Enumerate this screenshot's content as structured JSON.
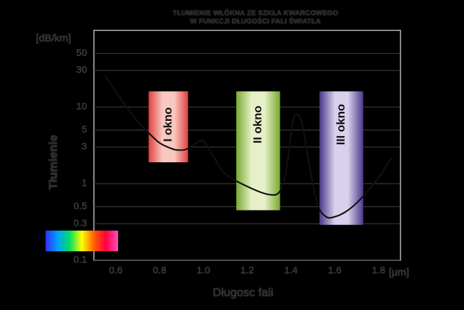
{
  "chart_data": {
    "type": "line",
    "title": [
      "TŁUMIENIE WŁÓKNA ZE SZKŁA KWARCOWEGO",
      "W FUNKCJI DŁUGOŚCI FALI ŚWIATŁA"
    ],
    "xlabel": "Długosc fali",
    "ylabel": "Tłumienie",
    "x_unit": "[µm]",
    "y_unit": "[dB/km]",
    "xlim": [
      0.5,
      1.9
    ],
    "ylim": [
      0.1,
      100
    ],
    "yscale": "log",
    "x_ticks": [
      0.6,
      0.8,
      1.0,
      1.2,
      1.4,
      1.6,
      1.8
    ],
    "x_tick_labels": [
      "0.6",
      "0.8",
      "1.0",
      "1.2",
      "1.4",
      "1.6",
      "1.8"
    ],
    "y_ticks": [
      0.1,
      0.3,
      0.5,
      1,
      3,
      5,
      10,
      30,
      50
    ],
    "y_tick_labels": [
      "0.1",
      "0.3",
      "0.5",
      "1",
      "3",
      "5",
      "10",
      "30",
      "50"
    ],
    "grid": true,
    "series": [
      {
        "x": [
          0.55,
          0.6,
          0.65,
          0.7,
          0.75,
          0.8,
          0.85,
          0.88,
          0.92,
          0.96,
          1.0,
          1.04,
          1.1,
          1.2,
          1.3,
          1.35,
          1.38,
          1.4,
          1.42,
          1.45,
          1.48,
          1.52,
          1.56,
          1.6,
          1.65,
          1.7,
          1.75,
          1.8,
          1.86
        ],
        "y": [
          26,
          16,
          10,
          6.5,
          4.6,
          3.4,
          2.9,
          2.75,
          2.8,
          3.3,
          3.6,
          2.4,
          1.35,
          0.92,
          0.72,
          0.8,
          1.6,
          4.5,
          8.0,
          6.2,
          2.0,
          0.55,
          0.37,
          0.37,
          0.43,
          0.56,
          0.8,
          1.2,
          2.2
        ],
        "color": "#111111"
      }
    ],
    "windows": [
      {
        "label": "I okno",
        "x_range": [
          0.75,
          0.93
        ],
        "y_range": [
          1.9,
          16
        ],
        "colors": [
          "#e04040",
          "#f8c8c0"
        ]
      },
      {
        "label": "II okno",
        "x_range": [
          1.15,
          1.35
        ],
        "y_range": [
          0.45,
          16
        ],
        "colors": [
          "#78a830",
          "#e6f0c8"
        ]
      },
      {
        "label": "III okno",
        "x_range": [
          1.53,
          1.73
        ],
        "y_range": [
          0.29,
          16
        ],
        "colors": [
          "#4a3888",
          "#d8d0ec"
        ]
      }
    ],
    "spectrum_colors": [
      "#3030ff",
      "#00a0ff",
      "#00e060",
      "#ffff00",
      "#ff6000",
      "#ff0040",
      "#ff50c0"
    ]
  }
}
